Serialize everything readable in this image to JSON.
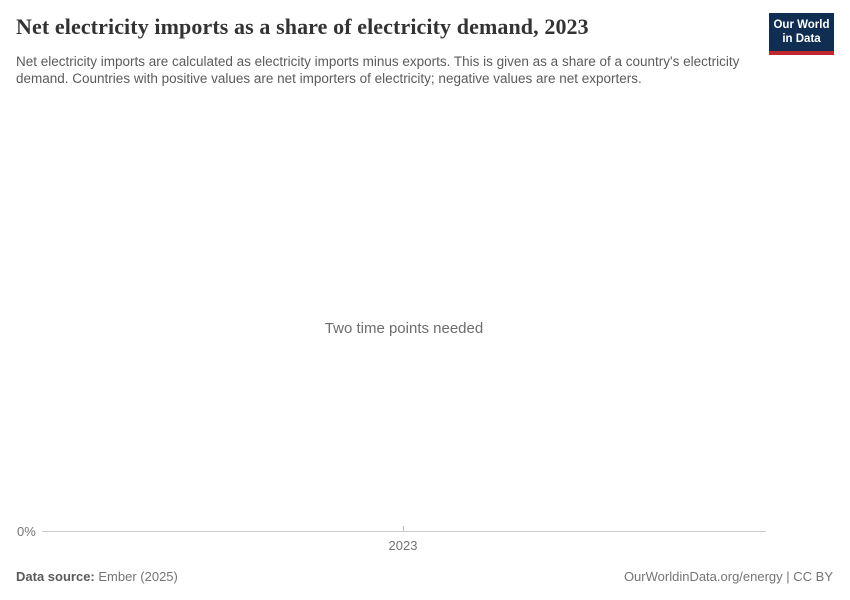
{
  "header": {
    "title": "Net electricity imports as a share of electricity demand, 2023",
    "subtitle": "Net electricity imports are calculated as electricity imports minus exports. This is given as a share of a country's electricity demand. Countries with positive values are net importers of electricity; negative values are net exporters.",
    "logo": {
      "line1": "Our World",
      "line2": "in Data"
    }
  },
  "chart": {
    "empty_message": "Two time points needed",
    "y_tick_label": "0%",
    "x_tick_label": "2023"
  },
  "footer": {
    "source_label": "Data source:",
    "source_value": "Ember (2025)",
    "attribution": "OurWorldinData.org/energy | CC BY"
  },
  "colors": {
    "logo_bg": "#0f2e52",
    "logo_stripe": "#c0282d",
    "axis_line": "#cccccc",
    "axis_tick": "#bbbbbb"
  },
  "chart_data": {
    "type": "line",
    "title": "Net electricity imports as a share of electricity demand, 2023",
    "series": [],
    "x_ticks": [
      "2023"
    ],
    "y_ticks": [
      "0%"
    ],
    "xlim": [
      2023,
      2023
    ],
    "empty_state_message": "Two time points needed",
    "grid": false,
    "legend": "none"
  }
}
